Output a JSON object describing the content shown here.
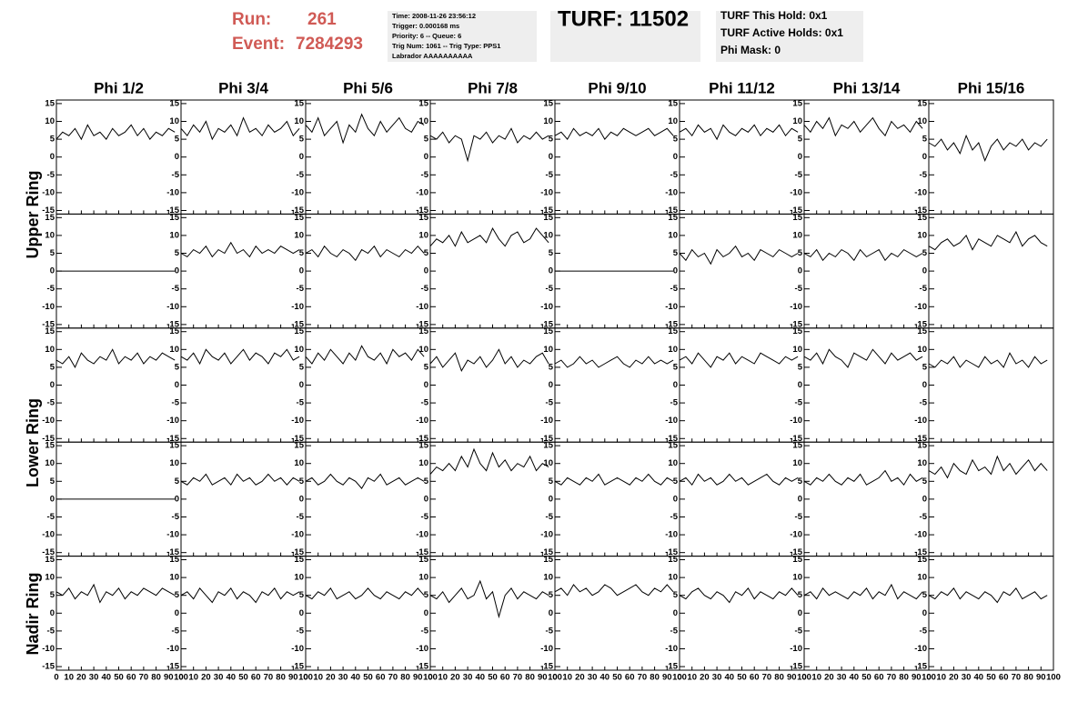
{
  "header": {
    "run_label": "Run:",
    "run": "261",
    "event_label": "Event:",
    "event": "7284293",
    "info": [
      "Time: 2008-11-26 23:56:12",
      "Trigger: 0.000168 ms",
      "Priority: 6 -- Queue: 6",
      "Trig Num: 1061 -- Trig Type: PPS1",
      "Labrador AAAAAAAAAA"
    ],
    "turf": "TURF: 11502",
    "turf_info": [
      "TURF This Hold: 0x1",
      "TURF Active Holds: 0x1",
      "Phi Mask: 0"
    ]
  },
  "columns": [
    "Phi 1/2",
    "Phi 3/4",
    "Phi 5/6",
    "Phi 7/8",
    "Phi 9/10",
    "Phi 11/12",
    "Phi 13/14",
    "Phi 15/16"
  ],
  "rows": [
    "Upper Ring",
    "Lower Ring",
    "Nadir Ring"
  ],
  "chart_data": {
    "type": "line",
    "color": "#000000",
    "x": [
      0,
      5,
      10,
      15,
      20,
      25,
      30,
      35,
      40,
      45,
      50,
      55,
      60,
      65,
      70,
      75,
      80,
      85,
      90,
      95
    ],
    "xlim": [
      0,
      100
    ],
    "xticks": [
      0,
      10,
      20,
      30,
      40,
      50,
      60,
      70,
      80,
      90,
      100
    ],
    "ylim": [
      -16,
      16
    ],
    "yticks": [
      -15,
      -10,
      -5,
      0,
      5,
      10,
      15
    ],
    "series": [
      {
        "values": [
          5,
          7,
          6,
          8,
          5,
          9,
          6,
          7,
          5,
          8,
          6,
          7,
          9,
          6,
          8,
          5,
          7,
          6,
          8,
          7
        ]
      },
      {
        "values": [
          8,
          6,
          9,
          7,
          10,
          5,
          8,
          7,
          9,
          6,
          11,
          7,
          8,
          6,
          9,
          7,
          8,
          10,
          6,
          8
        ]
      },
      {
        "values": [
          9,
          7,
          11,
          6,
          8,
          10,
          4,
          9,
          7,
          12,
          8,
          6,
          10,
          7,
          9,
          11,
          8,
          7,
          10,
          9
        ]
      },
      {
        "values": [
          6,
          5,
          7,
          4,
          6,
          5,
          -1,
          6,
          5,
          7,
          4,
          6,
          5,
          8,
          4,
          6,
          5,
          7,
          5,
          6
        ]
      },
      {
        "values": [
          6,
          7,
          5,
          8,
          6,
          7,
          6,
          8,
          5,
          7,
          6,
          8,
          7,
          6,
          7,
          8,
          6,
          7,
          8,
          6
        ]
      },
      {
        "values": [
          7,
          8,
          6,
          9,
          7,
          8,
          5,
          9,
          7,
          6,
          8,
          7,
          9,
          6,
          8,
          7,
          9,
          6,
          8,
          7
        ]
      },
      {
        "values": [
          9,
          7,
          10,
          8,
          11,
          6,
          9,
          8,
          10,
          7,
          9,
          11,
          8,
          6,
          10,
          8,
          9,
          7,
          10,
          8
        ]
      },
      {
        "values": [
          4,
          3,
          5,
          2,
          4,
          1,
          6,
          2,
          4,
          -1,
          3,
          5,
          2,
          4,
          3,
          5,
          2,
          4,
          3,
          5
        ]
      },
      {
        "values": [
          0,
          0,
          0,
          0,
          0,
          0,
          0,
          0,
          0,
          0,
          0,
          0,
          0,
          0,
          0,
          0,
          0,
          0,
          0,
          0
        ]
      },
      {
        "values": [
          5,
          4,
          6,
          5,
          7,
          4,
          6,
          5,
          8,
          5,
          6,
          4,
          7,
          5,
          6,
          5,
          7,
          6,
          5,
          6
        ]
      },
      {
        "values": [
          5,
          6,
          4,
          7,
          5,
          4,
          6,
          5,
          3,
          6,
          5,
          7,
          4,
          6,
          5,
          4,
          6,
          5,
          7,
          5
        ]
      },
      {
        "values": [
          7,
          9,
          8,
          10,
          7,
          11,
          8,
          9,
          10,
          8,
          12,
          9,
          7,
          10,
          11,
          8,
          9,
          12,
          10,
          8
        ]
      },
      {
        "values": [
          0,
          0,
          0,
          0,
          0,
          0,
          0,
          0,
          0,
          0,
          0,
          0,
          0,
          0,
          0,
          0,
          0,
          0,
          0,
          0
        ]
      },
      {
        "values": [
          5,
          3,
          6,
          4,
          5,
          2,
          6,
          4,
          5,
          7,
          4,
          5,
          3,
          6,
          5,
          4,
          6,
          5,
          4,
          5
        ]
      },
      {
        "values": [
          5,
          4,
          6,
          3,
          5,
          4,
          6,
          5,
          3,
          6,
          4,
          5,
          6,
          3,
          5,
          4,
          6,
          5,
          4,
          5
        ]
      },
      {
        "values": [
          7,
          6,
          8,
          9,
          7,
          8,
          10,
          6,
          9,
          8,
          7,
          10,
          9,
          8,
          11,
          7,
          9,
          10,
          8,
          7
        ]
      },
      {
        "values": [
          7,
          6,
          8,
          5,
          9,
          7,
          6,
          8,
          7,
          10,
          6,
          8,
          7,
          9,
          6,
          8,
          7,
          9,
          8,
          7
        ]
      },
      {
        "values": [
          8,
          7,
          9,
          6,
          10,
          8,
          7,
          9,
          6,
          8,
          10,
          7,
          9,
          8,
          6,
          9,
          8,
          10,
          7,
          8
        ]
      },
      {
        "values": [
          8,
          6,
          9,
          7,
          10,
          8,
          6,
          9,
          7,
          11,
          8,
          7,
          9,
          6,
          10,
          8,
          9,
          7,
          10,
          8
        ]
      },
      {
        "values": [
          6,
          8,
          5,
          7,
          9,
          4,
          7,
          6,
          8,
          5,
          7,
          10,
          6,
          8,
          5,
          7,
          6,
          8,
          9,
          6
        ]
      },
      {
        "values": [
          6,
          7,
          5,
          6,
          8,
          6,
          7,
          5,
          6,
          7,
          8,
          6,
          5,
          7,
          6,
          8,
          6,
          7,
          6,
          7
        ]
      },
      {
        "values": [
          7,
          8,
          6,
          9,
          7,
          5,
          8,
          7,
          9,
          6,
          8,
          7,
          6,
          9,
          8,
          7,
          6,
          8,
          7,
          8
        ]
      },
      {
        "values": [
          8,
          7,
          9,
          6,
          10,
          8,
          7,
          5,
          9,
          8,
          7,
          10,
          8,
          6,
          9,
          7,
          8,
          9,
          7,
          8
        ]
      },
      {
        "values": [
          6,
          5,
          7,
          6,
          8,
          5,
          7,
          6,
          5,
          8,
          6,
          7,
          5,
          9,
          6,
          7,
          5,
          8,
          6,
          7
        ]
      },
      {
        "values": [
          0,
          0,
          0,
          0,
          0,
          0,
          0,
          0,
          0,
          0,
          0,
          0,
          0,
          0,
          0,
          0,
          0,
          0,
          0,
          0
        ]
      },
      {
        "values": [
          5,
          4,
          6,
          5,
          7,
          4,
          5,
          6,
          4,
          7,
          5,
          6,
          4,
          5,
          7,
          5,
          6,
          4,
          6,
          5
        ]
      },
      {
        "values": [
          5,
          6,
          4,
          5,
          7,
          5,
          4,
          6,
          5,
          3,
          6,
          5,
          7,
          4,
          5,
          6,
          4,
          5,
          6,
          5
        ]
      },
      {
        "values": [
          7,
          9,
          8,
          10,
          8,
          12,
          9,
          14,
          10,
          8,
          13,
          9,
          11,
          8,
          10,
          9,
          12,
          8,
          10,
          9
        ]
      },
      {
        "values": [
          5,
          4,
          6,
          5,
          4,
          6,
          5,
          7,
          4,
          5,
          6,
          5,
          4,
          6,
          5,
          7,
          5,
          4,
          6,
          5
        ]
      },
      {
        "values": [
          5,
          6,
          4,
          7,
          5,
          6,
          4,
          5,
          7,
          5,
          6,
          4,
          5,
          6,
          7,
          5,
          4,
          6,
          5,
          6
        ]
      },
      {
        "values": [
          5,
          4,
          6,
          5,
          7,
          5,
          4,
          6,
          5,
          7,
          4,
          5,
          6,
          8,
          5,
          6,
          4,
          7,
          5,
          6
        ]
      },
      {
        "values": [
          8,
          7,
          9,
          6,
          10,
          8,
          7,
          11,
          8,
          9,
          7,
          12,
          8,
          10,
          7,
          9,
          11,
          8,
          10,
          8
        ]
      },
      {
        "values": [
          6,
          5,
          7,
          4,
          6,
          5,
          8,
          3,
          6,
          5,
          7,
          4,
          6,
          5,
          7,
          6,
          5,
          7,
          6,
          5
        ]
      },
      {
        "values": [
          5,
          6,
          4,
          7,
          5,
          3,
          6,
          5,
          7,
          4,
          6,
          5,
          3,
          6,
          5,
          7,
          4,
          6,
          5,
          6
        ]
      },
      {
        "values": [
          5,
          4,
          6,
          5,
          7,
          4,
          5,
          6,
          4,
          5,
          7,
          5,
          4,
          6,
          5,
          4,
          6,
          5,
          7,
          5
        ]
      },
      {
        "values": [
          5,
          4,
          6,
          3,
          5,
          7,
          4,
          5,
          9,
          4,
          6,
          -1,
          5,
          7,
          4,
          6,
          5,
          4,
          6,
          5
        ]
      },
      {
        "values": [
          6,
          7,
          5,
          8,
          6,
          7,
          5,
          6,
          8,
          7,
          5,
          6,
          7,
          8,
          6,
          5,
          7,
          6,
          8,
          6
        ]
      },
      {
        "values": [
          5,
          4,
          6,
          7,
          5,
          4,
          6,
          5,
          3,
          6,
          5,
          7,
          4,
          6,
          5,
          4,
          6,
          5,
          7,
          5
        ]
      },
      {
        "values": [
          5,
          6,
          4,
          7,
          5,
          6,
          5,
          4,
          6,
          5,
          7,
          4,
          6,
          5,
          8,
          4,
          6,
          5,
          4,
          6
        ]
      },
      {
        "values": [
          5,
          4,
          6,
          5,
          7,
          4,
          6,
          5,
          4,
          6,
          5,
          3,
          6,
          5,
          7,
          4,
          5,
          6,
          4,
          5
        ]
      }
    ]
  }
}
